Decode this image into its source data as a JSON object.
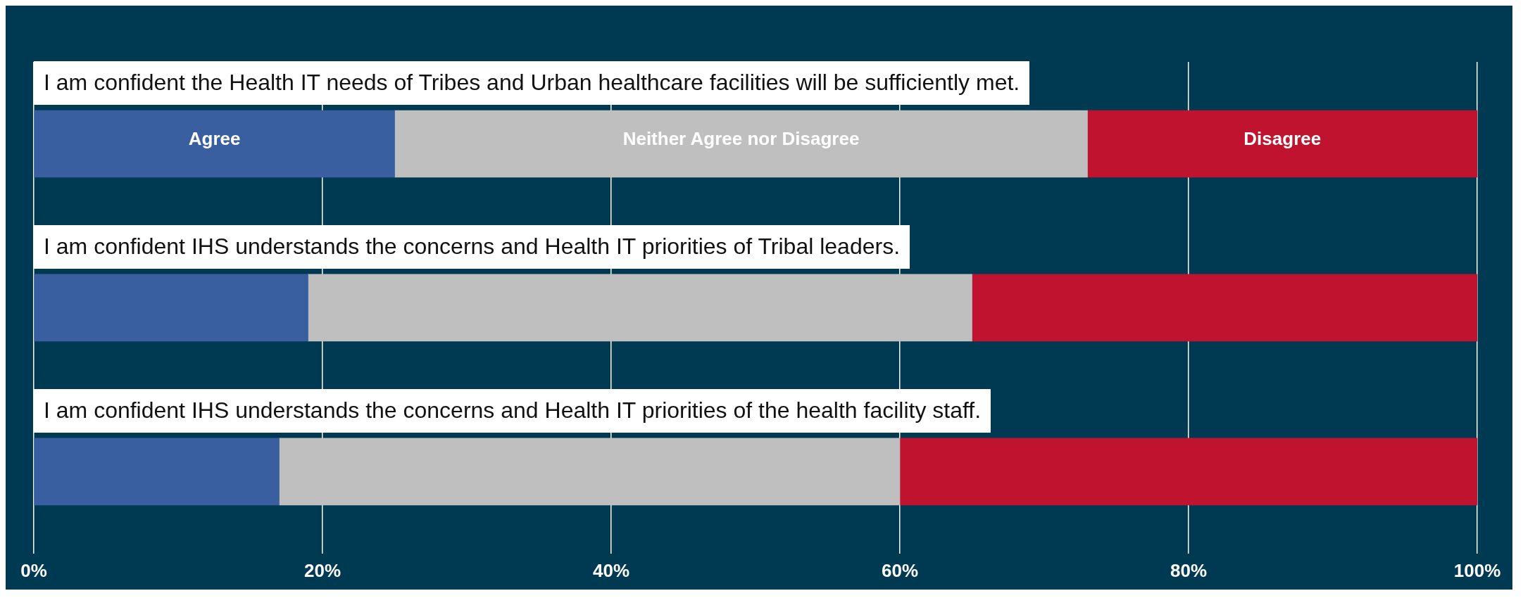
{
  "chart_data": {
    "type": "bar",
    "orientation": "horizontal",
    "stacked": true,
    "categories": [
      "I am confident the Health IT needs of Tribes and Urban healthcare facilities will be sufficiently met.",
      "I am confident IHS understands the concerns and Health IT priorities of Tribal leaders.",
      "I am confident IHS understands the concerns and Health IT priorities of the health facility staff."
    ],
    "series": [
      {
        "name": "Agree",
        "color": "#3a5fa0",
        "values": [
          25,
          19,
          17
        ]
      },
      {
        "name": "Neither Agree nor Disagree",
        "color": "#bfbfbf",
        "values": [
          48,
          46,
          43
        ]
      },
      {
        "name": "Disagree",
        "color": "#c0132f",
        "values": [
          27,
          35,
          40
        ]
      }
    ],
    "xlim": [
      0,
      100
    ],
    "xticks": [
      {
        "value": 0,
        "label": "0%"
      },
      {
        "value": 20,
        "label": "20%"
      },
      {
        "value": 40,
        "label": "40%"
      },
      {
        "value": 60,
        "label": "60%"
      },
      {
        "value": 80,
        "label": "80%"
      },
      {
        "value": 100,
        "label": "100%"
      }
    ],
    "grid": "x"
  }
}
